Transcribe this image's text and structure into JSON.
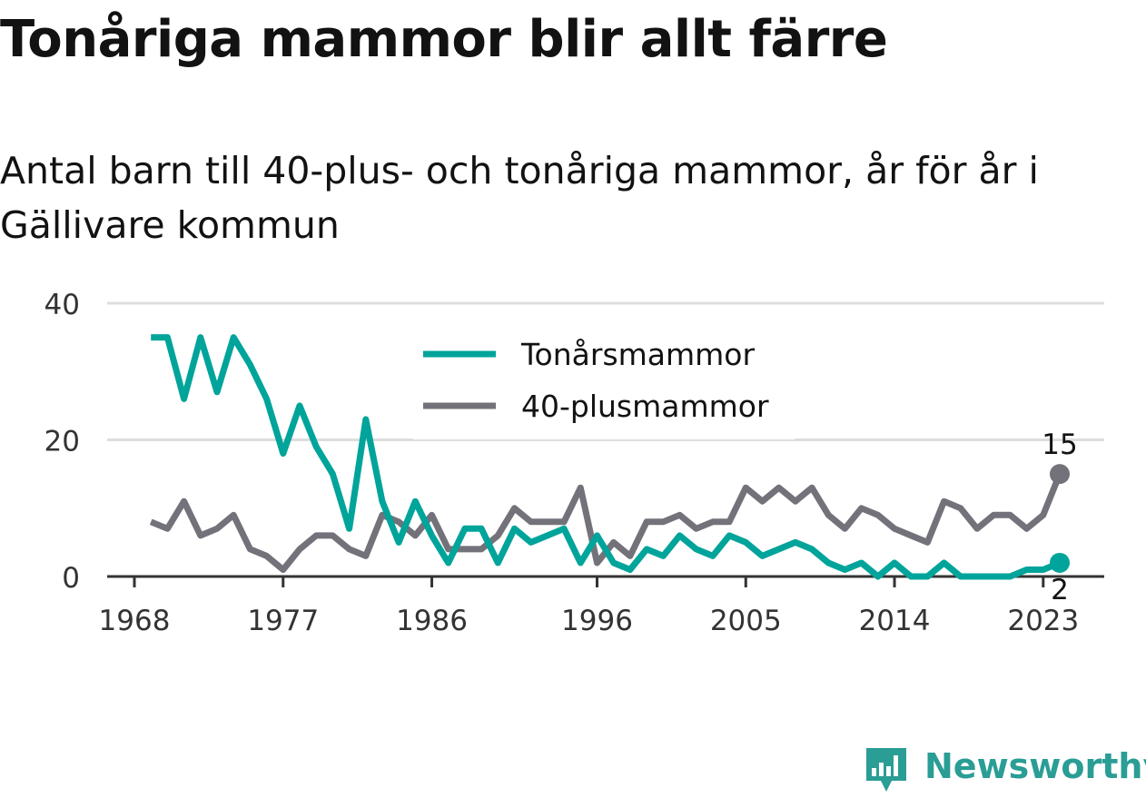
{
  "header": {
    "title": "Tonåriga mammor blir allt färre",
    "subtitle": "Antal barn till 40-plus- och tonåriga mammor, år för år i Gällivare kommun"
  },
  "brand": {
    "name": "Newsworthy",
    "icon": "newsworthy-bar-chart-icon",
    "color": "#2a9d95"
  },
  "chart_data": {
    "type": "line",
    "title": "Tonåriga mammor blir allt färre",
    "subtitle": "Antal barn till 40-plus- och tonåriga mammor, år för år i Gällivare kommun",
    "xlabel": "",
    "ylabel": "",
    "x": [
      1969,
      1970,
      1971,
      1972,
      1973,
      1974,
      1975,
      1976,
      1977,
      1978,
      1979,
      1980,
      1981,
      1982,
      1983,
      1984,
      1985,
      1986,
      1987,
      1988,
      1989,
      1990,
      1991,
      1992,
      1993,
      1994,
      1995,
      1996,
      1997,
      1998,
      1999,
      2000,
      2001,
      2002,
      2003,
      2004,
      2005,
      2006,
      2007,
      2008,
      2009,
      2010,
      2011,
      2012,
      2013,
      2014,
      2015,
      2016,
      2017,
      2018,
      2019,
      2020,
      2021,
      2022,
      2023,
      2024
    ],
    "xticks": [
      "1968",
      "1977",
      "1986",
      "1996",
      "2005",
      "2014",
      "2023"
    ],
    "xtick_values": [
      1968,
      1977,
      1986,
      1996,
      2005,
      2014,
      2023
    ],
    "ylim": [
      0,
      40
    ],
    "yticks": [
      0,
      20,
      40
    ],
    "grid": true,
    "legend_position": "top-center",
    "series": [
      {
        "name": "Tonårsmammor",
        "color": "#00a49a",
        "values": [
          35,
          35,
          26,
          35,
          27,
          35,
          31,
          26,
          18,
          25,
          19,
          15,
          7,
          23,
          11,
          5,
          11,
          6,
          2,
          7,
          7,
          2,
          7,
          5,
          6,
          7,
          2,
          6,
          2,
          1,
          4,
          3,
          6,
          4,
          3,
          6,
          5,
          3,
          4,
          5,
          4,
          2,
          1,
          2,
          0,
          2,
          0,
          0,
          2,
          0,
          0,
          0,
          0,
          1,
          1,
          2
        ],
        "end_label": "2"
      },
      {
        "name": "40-plusmammor",
        "color": "#73727a",
        "values": [
          8,
          7,
          11,
          6,
          7,
          9,
          4,
          3,
          1,
          4,
          6,
          6,
          4,
          3,
          9,
          8,
          6,
          9,
          4,
          4,
          4,
          6,
          10,
          8,
          8,
          8,
          13,
          2,
          5,
          3,
          8,
          8,
          9,
          7,
          8,
          8,
          13,
          11,
          13,
          11,
          13,
          9,
          7,
          10,
          9,
          7,
          6,
          5,
          11,
          10,
          7,
          9,
          9,
          7,
          9,
          15
        ],
        "end_label": "15"
      }
    ]
  }
}
